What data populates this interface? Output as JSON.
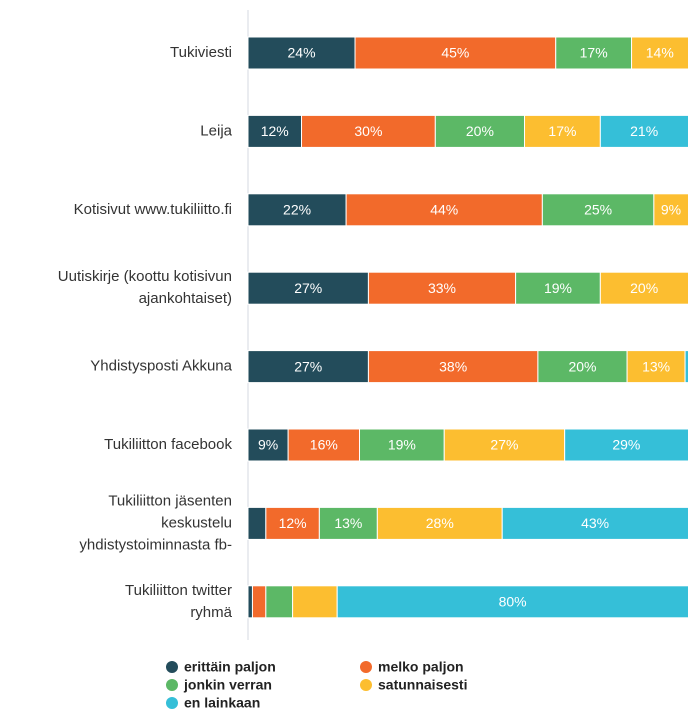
{
  "chart_data": {
    "type": "stacked-bar-horizontal",
    "categories": [
      [
        "Tukiviesti"
      ],
      [
        "Leija"
      ],
      [
        "Kotisivut www.tukiliitto.fi"
      ],
      [
        "Uutiskirje (koottu kotisivun",
        "ajankohtaiset)"
      ],
      [
        "Yhdistysposti Akkuna"
      ],
      [
        "Tukiliitton facebook"
      ],
      [
        "Tukiliitton jäsenten",
        "keskustelu",
        "yhdistystoiminnasta fb-"
      ],
      [
        "Tukiliitton twitter",
        "ryhmä"
      ]
    ],
    "xlim": [
      0,
      100
    ],
    "series": [
      {
        "name": "erittäin paljon",
        "color": "#234c5b",
        "values": [
          24,
          12,
          22,
          27,
          27,
          9,
          4,
          1
        ],
        "value_labels": [
          "24%",
          "12%",
          "22%",
          "27%",
          "27%",
          "9%",
          null,
          null
        ]
      },
      {
        "name": "melko paljon",
        "color": "#f26a2b",
        "values": [
          45,
          30,
          44,
          33,
          38,
          16,
          12,
          3
        ],
        "value_labels": [
          "45%",
          "30%",
          "44%",
          "33%",
          "38%",
          "16%",
          "12%",
          null
        ]
      },
      {
        "name": "jonkin verran",
        "color": "#5cb866",
        "values": [
          17,
          20,
          25,
          19,
          20,
          19,
          13,
          6
        ],
        "value_labels": [
          "17%",
          "20%",
          "25%",
          "19%",
          "20%",
          "19%",
          "13%",
          null
        ]
      },
      {
        "name": "satunnaisesti",
        "color": "#fcbe30",
        "values": [
          14,
          17,
          9,
          20,
          13,
          27,
          28,
          10
        ],
        "value_labels": [
          "14%",
          "17%",
          "9%",
          "20%",
          "13%",
          "27%",
          "28%",
          null
        ]
      },
      {
        "name": "en lainkaan",
        "color": "#35bfd8",
        "values": [
          0,
          21,
          0,
          1,
          2,
          29,
          43,
          80
        ],
        "value_labels": [
          null,
          "21%",
          null,
          null,
          null,
          "29%",
          "43%",
          "80%"
        ]
      }
    ],
    "legend": "bottom"
  }
}
